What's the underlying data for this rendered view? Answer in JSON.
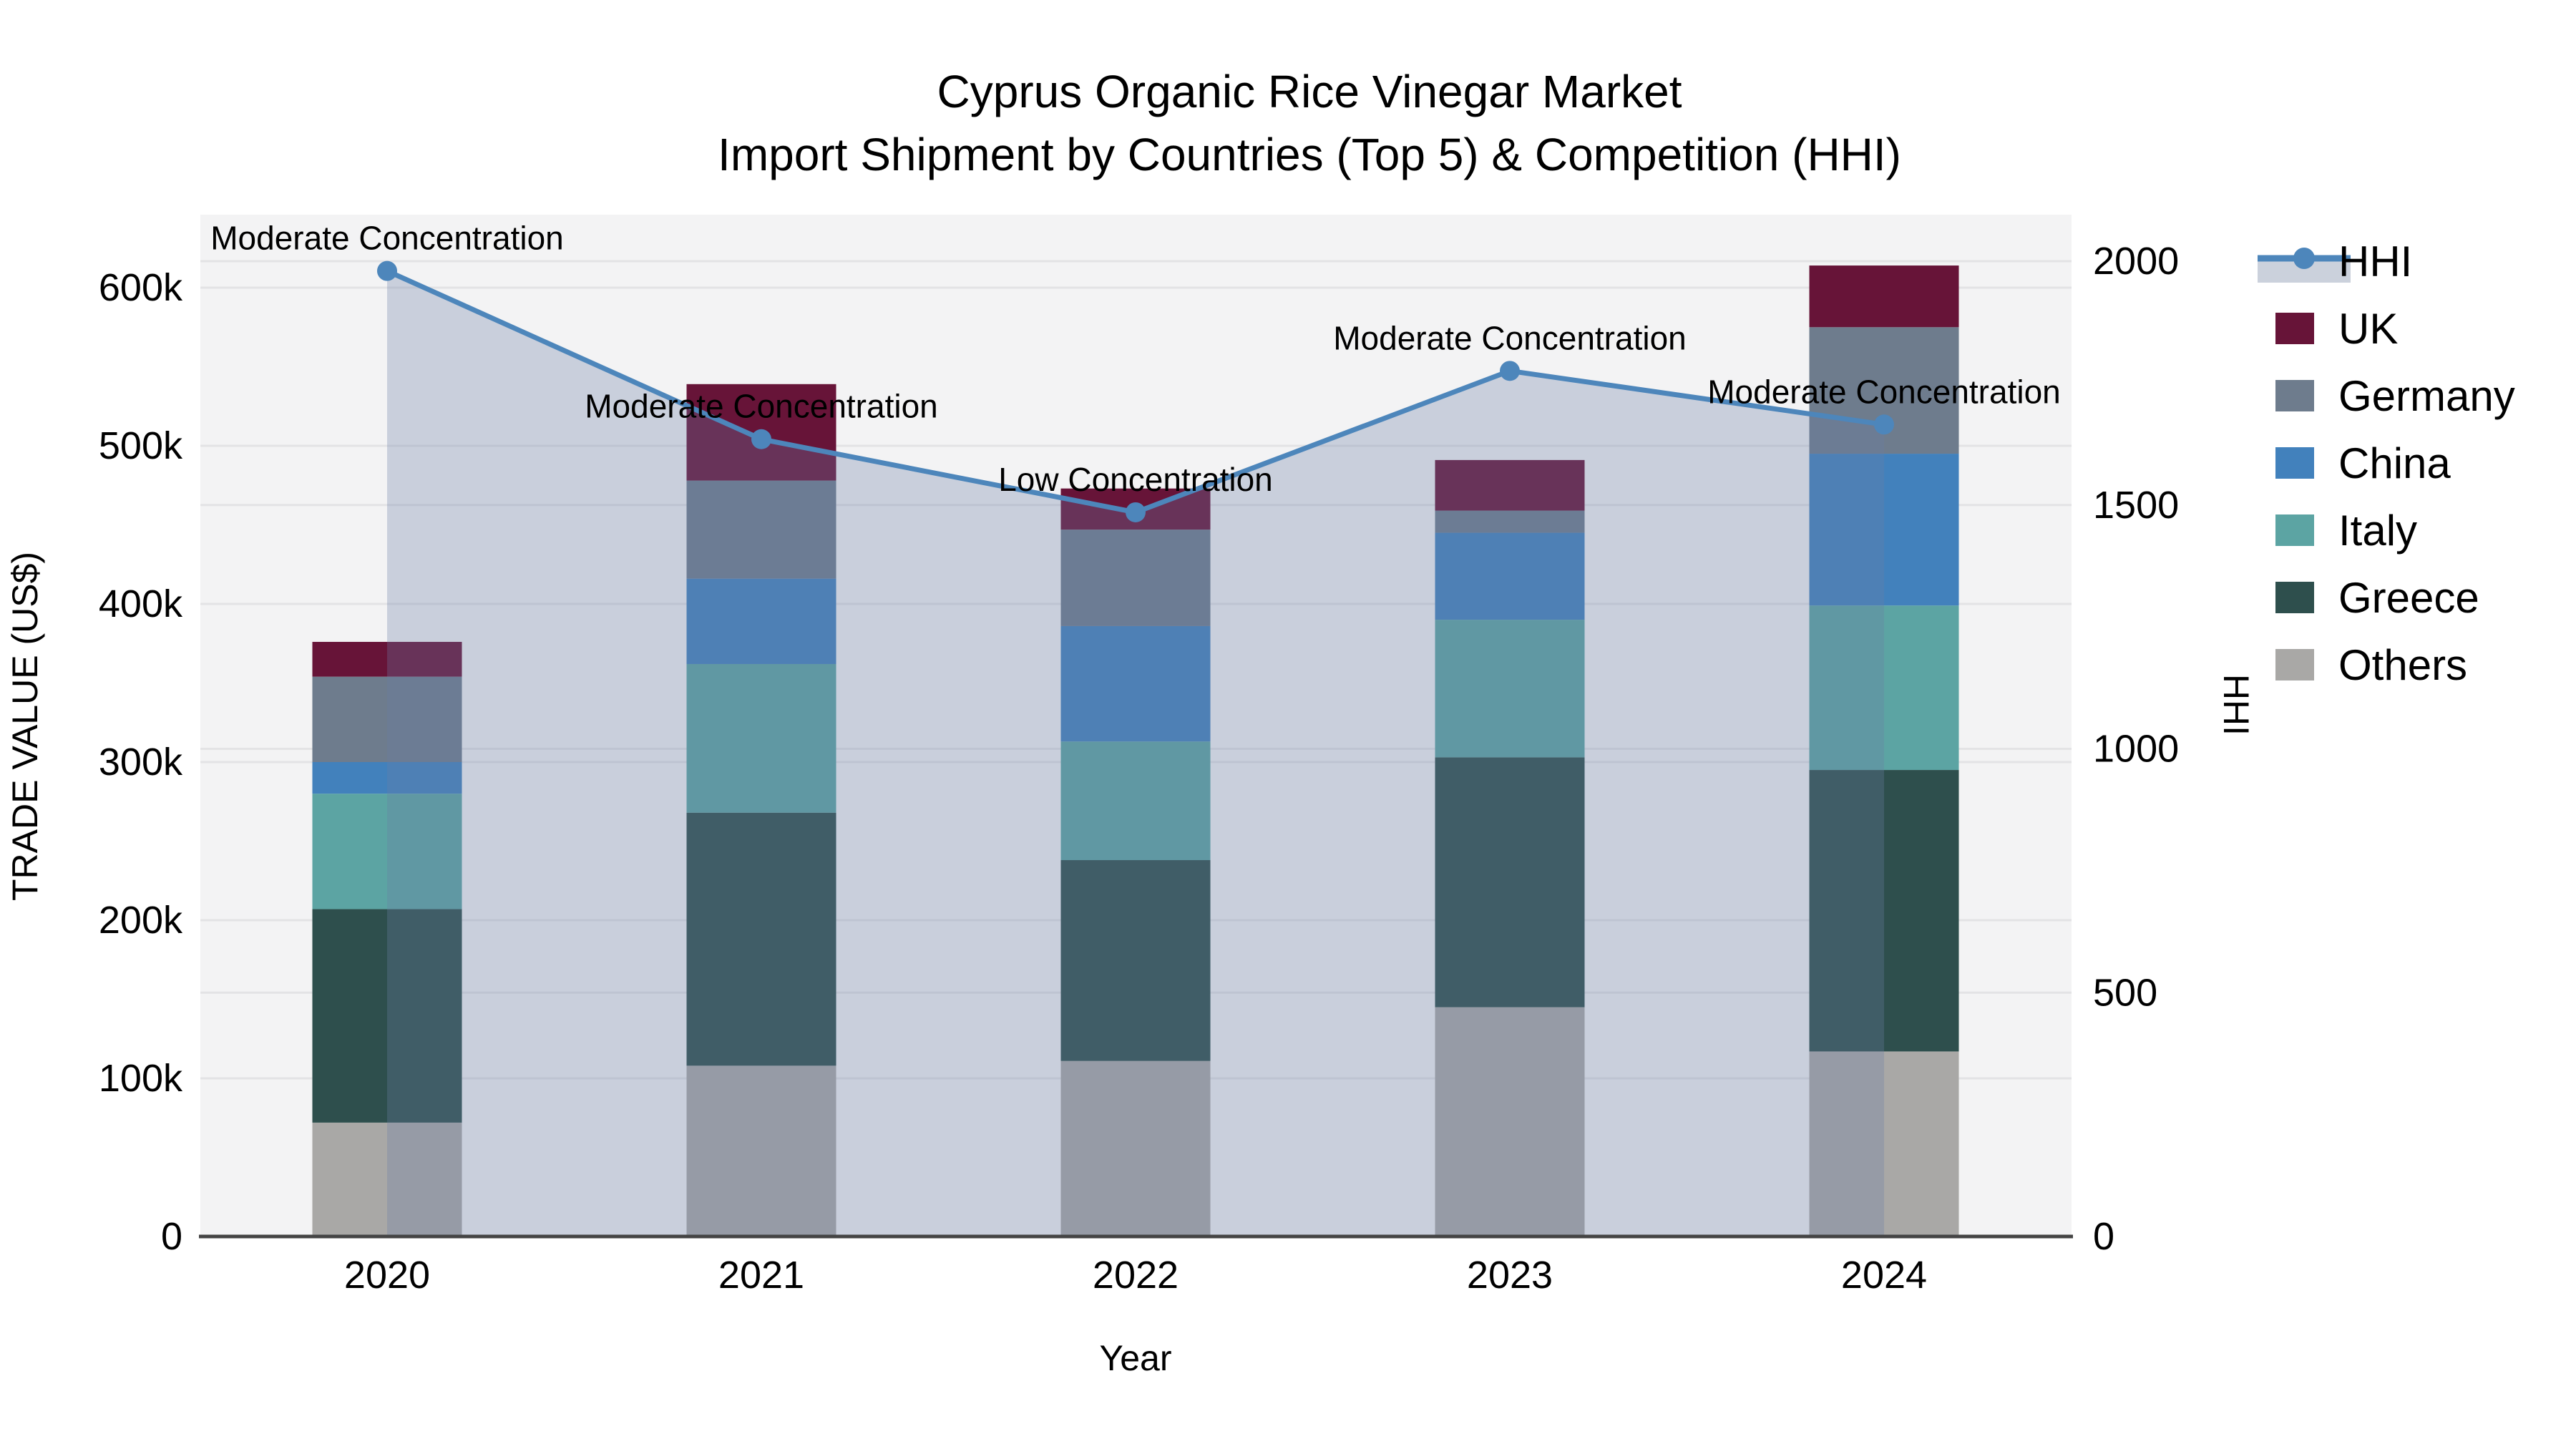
{
  "title": {
    "line1": "Cyprus Organic Rice Vinegar Market",
    "line2": "Import Shipment by Countries (Top 5) & Competition (HHI)"
  },
  "chart_data": {
    "type": "combo: stacked bar (left axis) + line with area (right axis)",
    "x": [
      "2020",
      "2021",
      "2022",
      "2023",
      "2024"
    ],
    "xlabel": "Year",
    "unit_note": "bar values in thousand US$",
    "y_left": {
      "label": "TRADE VALUE (US$)",
      "tick_labels": [
        "0",
        "100k",
        "200k",
        "300k",
        "400k",
        "500k",
        "600k"
      ],
      "tick_values_k": [
        0,
        100,
        200,
        300,
        400,
        500,
        600
      ],
      "max_k": 646
    },
    "y_right": {
      "label": "HHI",
      "tick_labels": [
        "0",
        "500",
        "1000",
        "1500",
        "2000"
      ],
      "tick_values": [
        0,
        500,
        1000,
        1500,
        2000
      ],
      "max": 2095
    },
    "series": [
      {
        "name": "Others",
        "color": "#a9a8a6",
        "values_k": [
          72,
          108,
          111,
          145,
          117
        ]
      },
      {
        "name": "Greece",
        "color": "#2e4f4d",
        "values_k": [
          135,
          160,
          127,
          158,
          178
        ]
      },
      {
        "name": "Italy",
        "color": "#5ca4a3",
        "values_k": [
          73,
          94,
          75,
          87,
          104
        ]
      },
      {
        "name": "China",
        "color": "#4281bc",
        "values_k": [
          20,
          54,
          73,
          55,
          96
        ]
      },
      {
        "name": "Germany",
        "color": "#6e7c8d",
        "values_k": [
          54,
          62,
          61,
          14,
          80
        ]
      },
      {
        "name": "UK",
        "color": "#671438",
        "values_k": [
          22,
          61,
          26,
          32,
          39
        ]
      }
    ],
    "totals_k": [
      376,
      539,
      473,
      491,
      614
    ],
    "hhi": {
      "name": "HHI",
      "values": [
        1980,
        1635,
        1485,
        1775,
        1665
      ],
      "line_color": "#4d86bb",
      "area_fill": "rgba(105,126,167,0.30)",
      "legend_band_color": "#cbd1dc"
    },
    "annotations": [
      {
        "x": "2020",
        "text": "Moderate Concentration"
      },
      {
        "x": "2021",
        "text": "Moderate Concentration"
      },
      {
        "x": "2022",
        "text": "Low Concentration"
      },
      {
        "x": "2023",
        "text": "Moderate Concentration"
      },
      {
        "x": "2024",
        "text": "Moderate Concentration"
      }
    ],
    "legend": [
      {
        "name": "HHI",
        "type": "line"
      },
      {
        "name": "UK",
        "type": "swatch",
        "color": "#671438"
      },
      {
        "name": "Germany",
        "type": "swatch",
        "color": "#6e7c8d"
      },
      {
        "name": "China",
        "type": "swatch",
        "color": "#4281bc"
      },
      {
        "name": "Italy",
        "type": "swatch",
        "color": "#5ca4a3"
      },
      {
        "name": "Greece",
        "type": "swatch",
        "color": "#2e4f4d"
      },
      {
        "name": "Others",
        "type": "swatch",
        "color": "#a9a8a6"
      }
    ],
    "colors": {
      "plot_bg": "#f3f3f4",
      "gridline": "#e3e3e5",
      "axis_line": "#444444"
    }
  }
}
